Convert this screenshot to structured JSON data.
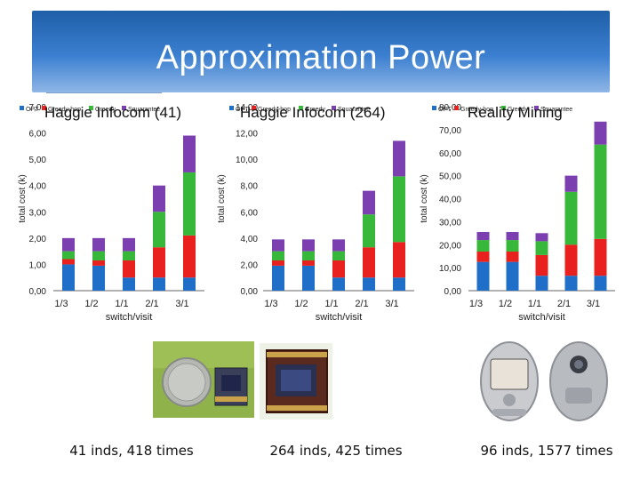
{
  "slide": {
    "title": "Approximation Power"
  },
  "colors": {
    "opt": "#1f6fc8",
    "greedy_hop": "#e8201e",
    "greedy": "#38b83a",
    "squarantee": "#7b3fb0"
  },
  "legend": [
    "OPT",
    "Greedy-hop",
    "Greedy",
    "Squarantee"
  ],
  "chart_data": [
    {
      "type": "bar",
      "stacked": true,
      "title": "Haggie Infocom (41)",
      "xlabel": "switch/visit",
      "ylabel": "total cost (k)",
      "categories": [
        "1/3",
        "1/2",
        "1/1",
        "2/1",
        "3/1"
      ],
      "ylim": [
        0,
        7
      ],
      "yticks": [
        "0,00",
        "1,00",
        "2,00",
        "3,00",
        "4,00",
        "5,00",
        "6,00",
        "7,00"
      ],
      "series": [
        {
          "name": "OPT",
          "values": [
            1.0,
            0.95,
            0.5,
            0.5,
            0.5
          ]
        },
        {
          "name": "Greedy-hop",
          "values": [
            0.2,
            0.2,
            0.65,
            1.15,
            1.6
          ]
        },
        {
          "name": "Greedy",
          "values": [
            0.3,
            0.35,
            0.35,
            1.35,
            2.4
          ]
        },
        {
          "name": "Squarantee",
          "values": [
            0.5,
            0.5,
            0.5,
            1.0,
            1.4
          ]
        }
      ]
    },
    {
      "type": "bar",
      "stacked": true,
      "title": "Haggie Infocom (264)",
      "xlabel": "switch/visit",
      "ylabel": "total cost (k)",
      "categories": [
        "1/3",
        "1/2",
        "1/1",
        "2/1",
        "3/1"
      ],
      "ylim": [
        0,
        14
      ],
      "yticks": [
        "0,00",
        "2,00",
        "4,00",
        "6,00",
        "8,00",
        "10,00",
        "12,00",
        "14,00"
      ],
      "series": [
        {
          "name": "OPT",
          "values": [
            1.9,
            1.9,
            1.0,
            1.0,
            1.0
          ]
        },
        {
          "name": "Greedy-hop",
          "values": [
            0.4,
            0.4,
            1.3,
            2.3,
            2.7
          ]
        },
        {
          "name": "Greedy",
          "values": [
            0.7,
            0.7,
            0.7,
            2.5,
            5.0
          ]
        },
        {
          "name": "Squarantee",
          "values": [
            0.9,
            0.9,
            0.9,
            1.8,
            2.7
          ]
        }
      ]
    },
    {
      "type": "bar",
      "stacked": true,
      "title": "Reality Mining",
      "xlabel": "switch/visit",
      "ylabel": "total cost (k)",
      "categories": [
        "1/3",
        "1/2",
        "1/1",
        "2/1",
        "3/1"
      ],
      "ylim": [
        0,
        80
      ],
      "yticks": [
        "0,00",
        "10,00",
        "20,00",
        "30,00",
        "40,00",
        "50,00",
        "60,00",
        "70,00",
        "80,00"
      ],
      "series": [
        {
          "name": "OPT",
          "values": [
            12.5,
            12.5,
            6.5,
            6.5,
            6.5
          ]
        },
        {
          "name": "Greedy-hop",
          "values": [
            4.5,
            4.5,
            9.0,
            13.5,
            16.0
          ]
        },
        {
          "name": "Greedy",
          "values": [
            5.0,
            5.0,
            6.0,
            23.0,
            41.0
          ]
        },
        {
          "name": "Squarantee",
          "values": [
            3.5,
            3.5,
            3.5,
            7.0,
            10.0
          ]
        }
      ]
    }
  ],
  "captions": [
    "41 inds, 418 times",
    "264 inds, 425 times",
    "96 inds, 1577 times"
  ]
}
